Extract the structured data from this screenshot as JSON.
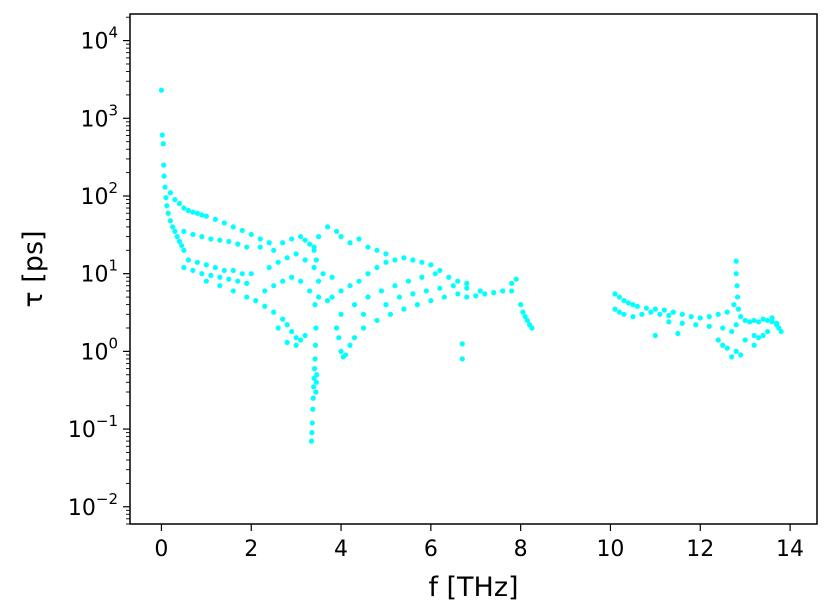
{
  "chart_data": {
    "type": "scatter",
    "title": "",
    "xlabel": "f [THz]",
    "ylabel": "τ [ps]",
    "xlim": [
      -0.7,
      14.6
    ],
    "ylim": [
      0.006,
      22000
    ],
    "y_scale": "log",
    "grid": false,
    "legend": "none",
    "marker_color": "#00FFFF",
    "x_ticks": [
      0,
      2,
      4,
      6,
      8,
      10,
      12,
      14
    ],
    "x_tick_labels": [
      "0",
      "2",
      "4",
      "6",
      "8",
      "10",
      "12",
      "14"
    ],
    "y_ticks": [
      0.01,
      0.1,
      1,
      10,
      100,
      1000,
      10000
    ],
    "y_tick_labels": [
      {
        "base": "10",
        "exp": "−2"
      },
      {
        "base": "10",
        "exp": "−1"
      },
      {
        "base": "10",
        "exp": "0"
      },
      {
        "base": "10",
        "exp": "1"
      },
      {
        "base": "10",
        "exp": "2"
      },
      {
        "base": "10",
        "exp": "3"
      },
      {
        "base": "10",
        "exp": "4"
      }
    ],
    "points": [
      [
        0.0,
        2300
      ],
      [
        0.02,
        610
      ],
      [
        0.04,
        470
      ],
      [
        0.05,
        250
      ],
      [
        0.06,
        180
      ],
      [
        0.08,
        130
      ],
      [
        0.1,
        95
      ],
      [
        0.12,
        75
      ],
      [
        0.15,
        60
      ],
      [
        0.2,
        48
      ],
      [
        0.25,
        40
      ],
      [
        0.3,
        35
      ],
      [
        0.35,
        30
      ],
      [
        0.4,
        26
      ],
      [
        0.45,
        23
      ],
      [
        0.5,
        20
      ],
      [
        0.2,
        110
      ],
      [
        0.3,
        90
      ],
      [
        0.4,
        80
      ],
      [
        0.5,
        70
      ],
      [
        0.6,
        65
      ],
      [
        0.7,
        62
      ],
      [
        0.8,
        60
      ],
      [
        0.9,
        57
      ],
      [
        1.0,
        55
      ],
      [
        1.2,
        50
      ],
      [
        1.4,
        45
      ],
      [
        1.6,
        40
      ],
      [
        1.8,
        36
      ],
      [
        2.0,
        32
      ],
      [
        2.2,
        28
      ],
      [
        2.4,
        25
      ],
      [
        0.5,
        35
      ],
      [
        0.7,
        32
      ],
      [
        0.9,
        30
      ],
      [
        1.1,
        28
      ],
      [
        1.3,
        27
      ],
      [
        1.5,
        26
      ],
      [
        1.7,
        24
      ],
      [
        1.9,
        22
      ],
      [
        0.6,
        15
      ],
      [
        0.8,
        14
      ],
      [
        1.0,
        13
      ],
      [
        1.2,
        12
      ],
      [
        1.4,
        11
      ],
      [
        1.6,
        11
      ],
      [
        1.8,
        10
      ],
      [
        2.0,
        10
      ],
      [
        0.5,
        12
      ],
      [
        0.7,
        11
      ],
      [
        0.9,
        10
      ],
      [
        1.1,
        9.5
      ],
      [
        1.3,
        9
      ],
      [
        1.5,
        8.5
      ],
      [
        1.7,
        8
      ],
      [
        1.9,
        7.5
      ],
      [
        1.0,
        8
      ],
      [
        1.3,
        7
      ],
      [
        1.6,
        6
      ],
      [
        1.9,
        5
      ],
      [
        2.1,
        4.5
      ],
      [
        2.3,
        3.8
      ],
      [
        2.5,
        3.2
      ],
      [
        2.7,
        2.6
      ],
      [
        2.8,
        2.2
      ],
      [
        2.9,
        1.8
      ],
      [
        3.0,
        1.5
      ],
      [
        3.1,
        1.4
      ],
      [
        3.2,
        1.6
      ],
      [
        2.6,
        2.0
      ],
      [
        2.8,
        1.3
      ],
      [
        3.0,
        1.2
      ],
      [
        2.2,
        22
      ],
      [
        2.5,
        20
      ],
      [
        2.7,
        25
      ],
      [
        2.9,
        28
      ],
      [
        3.1,
        30
      ],
      [
        3.2,
        27
      ],
      [
        3.3,
        24
      ],
      [
        3.4,
        22
      ],
      [
        2.4,
        12
      ],
      [
        2.6,
        14
      ],
      [
        2.8,
        16
      ],
      [
        3.0,
        18
      ],
      [
        3.2,
        15
      ],
      [
        3.4,
        12
      ],
      [
        3.6,
        10
      ],
      [
        3.8,
        9
      ],
      [
        2.3,
        6
      ],
      [
        2.5,
        7
      ],
      [
        2.7,
        8
      ],
      [
        2.9,
        9
      ],
      [
        3.1,
        8
      ],
      [
        3.3,
        6
      ],
      [
        3.5,
        5
      ],
      [
        3.7,
        4.5
      ],
      [
        3.4,
        20
      ],
      [
        3.5,
        30
      ],
      [
        3.45,
        15
      ],
      [
        3.5,
        8
      ],
      [
        3.42,
        4
      ],
      [
        3.44,
        2
      ],
      [
        3.43,
        1.2
      ],
      [
        3.42,
        0.8
      ],
      [
        3.41,
        0.6
      ],
      [
        3.4,
        0.45
      ],
      [
        3.39,
        0.35
      ],
      [
        3.38,
        0.25
      ],
      [
        3.37,
        0.18
      ],
      [
        3.36,
        0.12
      ],
      [
        3.35,
        0.09
      ],
      [
        3.34,
        0.07
      ],
      [
        3.46,
        0.5
      ],
      [
        3.45,
        0.4
      ],
      [
        3.44,
        0.3
      ],
      [
        3.7,
        40
      ],
      [
        3.9,
        35
      ],
      [
        4.0,
        30
      ],
      [
        4.2,
        25
      ],
      [
        4.4,
        28
      ],
      [
        4.6,
        22
      ],
      [
        4.8,
        20
      ],
      [
        5.0,
        18
      ],
      [
        3.9,
        2.0
      ],
      [
        3.95,
        1.5
      ],
      [
        4.0,
        1.0
      ],
      [
        4.05,
        0.85
      ],
      [
        4.1,
        0.9
      ],
      [
        4.2,
        1.2
      ],
      [
        4.3,
        1.5
      ],
      [
        4.5,
        2.0
      ],
      [
        3.8,
        5
      ],
      [
        4.0,
        6
      ],
      [
        4.2,
        7
      ],
      [
        4.4,
        8
      ],
      [
        4.6,
        10
      ],
      [
        4.8,
        12
      ],
      [
        5.0,
        14
      ],
      [
        5.2,
        15
      ],
      [
        4.0,
        3
      ],
      [
        4.3,
        4
      ],
      [
        4.6,
        5
      ],
      [
        4.9,
        6
      ],
      [
        5.2,
        7
      ],
      [
        5.5,
        8
      ],
      [
        5.8,
        9
      ],
      [
        6.1,
        10
      ],
      [
        5.0,
        4
      ],
      [
        5.3,
        5
      ],
      [
        5.6,
        5.5
      ],
      [
        5.9,
        6
      ],
      [
        6.2,
        6.5
      ],
      [
        6.5,
        7
      ],
      [
        6.8,
        6.5
      ],
      [
        7.1,
        6
      ],
      [
        5.4,
        16
      ],
      [
        5.6,
        15
      ],
      [
        5.8,
        14
      ],
      [
        6.0,
        13
      ],
      [
        6.2,
        11
      ],
      [
        6.4,
        9
      ],
      [
        6.6,
        8
      ],
      [
        6.8,
        7.5
      ],
      [
        4.5,
        3
      ],
      [
        4.8,
        2.5
      ],
      [
        5.1,
        3
      ],
      [
        5.4,
        3.5
      ],
      [
        5.7,
        4
      ],
      [
        6.0,
        4.5
      ],
      [
        6.3,
        5
      ],
      [
        6.6,
        5.5
      ],
      [
        6.7,
        1.25
      ],
      [
        6.7,
        0.8
      ],
      [
        6.8,
        5
      ],
      [
        7.0,
        5.2
      ],
      [
        7.2,
        5.5
      ],
      [
        7.4,
        5.7
      ],
      [
        7.6,
        6.0
      ],
      [
        7.8,
        7.5
      ],
      [
        7.9,
        8.5
      ],
      [
        8.0,
        4
      ],
      [
        8.05,
        3.2
      ],
      [
        8.1,
        2.8
      ],
      [
        8.15,
        2.5
      ],
      [
        8.2,
        2.2
      ],
      [
        8.25,
        2.0
      ],
      [
        7.8,
        6
      ],
      [
        10.1,
        5.5
      ],
      [
        10.2,
        5.0
      ],
      [
        10.3,
        4.5
      ],
      [
        10.4,
        4.2
      ],
      [
        10.5,
        4.0
      ],
      [
        10.6,
        3.8
      ],
      [
        10.8,
        3.6
      ],
      [
        11.0,
        3.5
      ],
      [
        10.1,
        3.5
      ],
      [
        10.2,
        3.2
      ],
      [
        10.3,
        3.0
      ],
      [
        10.5,
        2.8
      ],
      [
        10.7,
        3.0
      ],
      [
        10.9,
        3.2
      ],
      [
        11.1,
        3.0
      ],
      [
        11.3,
        2.9
      ],
      [
        11.2,
        3.4
      ],
      [
        11.4,
        3.2
      ],
      [
        11.6,
        3.0
      ],
      [
        11.8,
        2.8
      ],
      [
        12.0,
        2.7
      ],
      [
        12.2,
        2.8
      ],
      [
        12.4,
        3.0
      ],
      [
        12.6,
        3.2
      ],
      [
        11.3,
        2.4
      ],
      [
        11.6,
        2.3
      ],
      [
        11.9,
        2.2
      ],
      [
        12.2,
        2.1
      ],
      [
        12.5,
        2.0
      ],
      [
        12.7,
        1.8
      ],
      [
        12.8,
        2.2
      ],
      [
        12.85,
        3.5
      ],
      [
        12.8,
        14.5
      ],
      [
        12.8,
        10
      ],
      [
        12.82,
        7
      ],
      [
        12.83,
        5
      ],
      [
        12.75,
        4
      ],
      [
        12.9,
        2.8
      ],
      [
        13.0,
        2.5
      ],
      [
        13.1,
        2.4
      ],
      [
        12.4,
        1.4
      ],
      [
        12.5,
        1.2
      ],
      [
        12.6,
        1.1
      ],
      [
        12.7,
        0.85
      ],
      [
        12.8,
        1.0
      ],
      [
        12.9,
        0.9
      ],
      [
        13.0,
        1.4
      ],
      [
        13.2,
        1.6
      ],
      [
        13.2,
        2.5
      ],
      [
        13.3,
        2.4
      ],
      [
        13.4,
        2.6
      ],
      [
        13.5,
        2.5
      ],
      [
        13.6,
        2.4
      ],
      [
        13.7,
        2.3
      ],
      [
        13.75,
        2.0
      ],
      [
        13.8,
        1.8
      ],
      [
        13.3,
        1.5
      ],
      [
        13.4,
        1.6
      ],
      [
        13.5,
        1.8
      ],
      [
        13.6,
        2.7
      ],
      [
        13.7,
        2.2
      ],
      [
        13.2,
        1.2
      ],
      [
        11.0,
        1.6
      ],
      [
        11.5,
        1.7
      ]
    ]
  }
}
